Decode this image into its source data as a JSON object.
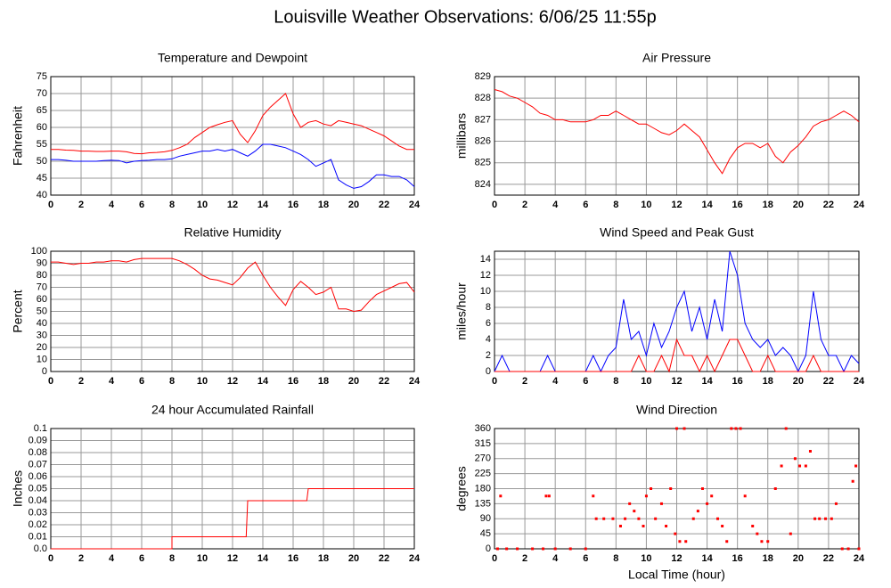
{
  "title": "Louisville Weather Observations: 6/06/25 11:55p",
  "chart_data": [
    {
      "type": "line",
      "title": "Temperature and Dewpoint",
      "ylabel": "Fahrenheit",
      "xlim": [
        0,
        24
      ],
      "xticks": [
        0,
        2,
        4,
        6,
        8,
        10,
        12,
        14,
        16,
        18,
        20,
        22,
        24
      ],
      "ylim": [
        40,
        75
      ],
      "yticks": [
        40,
        45,
        50,
        55,
        60,
        65,
        70,
        75
      ],
      "grid": true,
      "x": [
        0,
        0.5,
        1,
        1.5,
        2,
        2.5,
        3,
        3.5,
        4,
        4.5,
        5,
        5.5,
        6,
        6.5,
        7,
        7.5,
        8,
        8.5,
        9,
        9.5,
        10,
        10.5,
        11,
        11.5,
        12,
        12.5,
        13,
        13.5,
        14,
        14.5,
        15,
        15.5,
        16,
        16.5,
        17,
        17.5,
        18,
        18.5,
        19,
        19.5,
        20,
        20.5,
        21,
        21.5,
        22,
        22.5,
        23,
        23.5,
        24
      ],
      "series": [
        {
          "color": "#ff0000",
          "values": [
            53.5,
            53.5,
            53.3,
            53.2,
            53,
            53,
            52.9,
            52.9,
            53,
            53,
            52.8,
            52.3,
            52.2,
            52.5,
            52.6,
            52.8,
            53.2,
            54,
            55,
            57,
            58.5,
            60,
            60.8,
            61.5,
            62,
            58,
            55.5,
            59,
            63.5,
            66,
            68,
            70,
            64,
            60,
            61.5,
            62,
            61,
            60.5,
            62,
            61.5,
            61,
            60.5,
            59.5,
            58.5,
            57.5,
            56,
            54.5,
            53.5,
            53.5
          ]
        },
        {
          "color": "#0000ff",
          "values": [
            50.5,
            50.5,
            50.3,
            50,
            50,
            50,
            50,
            50.2,
            50.3,
            50.2,
            49.5,
            50,
            50.2,
            50.3,
            50.5,
            50.5,
            50.7,
            51.5,
            52,
            52.5,
            53,
            53,
            53.5,
            53,
            53.5,
            52.5,
            51.5,
            53,
            55,
            55,
            54.5,
            54,
            53,
            52,
            50.5,
            48.5,
            49.5,
            50.5,
            44.5,
            43,
            42,
            42.5,
            44,
            46,
            46,
            45.5,
            45.5,
            44.5,
            42.5
          ]
        }
      ]
    },
    {
      "type": "line",
      "title": "Air Pressure",
      "ylabel": "millibars",
      "xlim": [
        0,
        24
      ],
      "xticks": [
        0,
        2,
        4,
        6,
        8,
        10,
        12,
        14,
        16,
        18,
        20,
        22,
        24
      ],
      "ylim": [
        823.5,
        829
      ],
      "yticks": [
        824,
        825,
        826,
        827,
        828,
        829
      ],
      "grid": true,
      "x": [
        0,
        0.5,
        1,
        1.5,
        2,
        2.5,
        3,
        3.5,
        4,
        4.5,
        5,
        5.5,
        6,
        6.5,
        7,
        7.5,
        8,
        8.5,
        9,
        9.5,
        10,
        10.5,
        11,
        11.5,
        12,
        12.5,
        13,
        13.5,
        14,
        14.5,
        15,
        15.5,
        16,
        16.5,
        17,
        17.5,
        18,
        18.5,
        19,
        19.5,
        20,
        20.5,
        21,
        21.5,
        22,
        22.5,
        23,
        23.5,
        24
      ],
      "series": [
        {
          "color": "#ff0000",
          "values": [
            828.4,
            828.3,
            828.1,
            828,
            827.8,
            827.6,
            827.3,
            827.2,
            827,
            827,
            826.9,
            826.9,
            826.9,
            827,
            827.2,
            827.2,
            827.4,
            827.2,
            827,
            826.8,
            826.8,
            826.6,
            826.4,
            826.3,
            826.5,
            826.8,
            826.5,
            826.2,
            825.6,
            825,
            824.5,
            825.2,
            825.7,
            825.9,
            825.9,
            825.7,
            825.9,
            825.3,
            825,
            825.5,
            825.8,
            826.2,
            826.7,
            826.9,
            827,
            827.2,
            827.4,
            827.2,
            826.9
          ]
        }
      ]
    },
    {
      "type": "line",
      "title": "Relative Humidity",
      "ylabel": "Percent",
      "xlim": [
        0,
        24
      ],
      "xticks": [
        0,
        2,
        4,
        6,
        8,
        10,
        12,
        14,
        16,
        18,
        20,
        22,
        24
      ],
      "ylim": [
        0,
        100
      ],
      "yticks": [
        0,
        10,
        20,
        30,
        40,
        50,
        60,
        70,
        80,
        90,
        100
      ],
      "grid": true,
      "x": [
        0,
        0.5,
        1,
        1.5,
        2,
        2.5,
        3,
        3.5,
        4,
        4.5,
        5,
        5.5,
        6,
        6.5,
        7,
        7.5,
        8,
        8.5,
        9,
        9.5,
        10,
        10.5,
        11,
        11.5,
        12,
        12.5,
        13,
        13.5,
        14,
        14.5,
        15,
        15.5,
        16,
        16.5,
        17,
        17.5,
        18,
        18.5,
        19,
        19.5,
        20,
        20.5,
        21,
        21.5,
        22,
        22.5,
        23,
        23.5,
        24
      ],
      "series": [
        {
          "color": "#ff0000",
          "values": [
            91,
            91,
            90,
            89,
            90,
            90,
            91,
            91,
            92,
            92,
            91,
            93,
            94,
            94,
            94,
            94,
            94,
            92,
            89,
            85,
            80,
            77,
            76,
            74,
            72,
            78,
            86,
            91,
            80,
            70,
            62,
            55,
            68,
            75,
            70,
            64,
            66,
            70,
            52,
            52,
            50,
            51,
            58,
            64,
            67,
            70,
            73,
            74,
            66
          ]
        }
      ]
    },
    {
      "type": "line",
      "title": "Wind Speed and Peak Gust",
      "ylabel": "miles/hour",
      "xlim": [
        0,
        24
      ],
      "xticks": [
        0,
        2,
        4,
        6,
        8,
        10,
        12,
        14,
        16,
        18,
        20,
        22,
        24
      ],
      "ylim": [
        0,
        15
      ],
      "yticks": [
        0,
        2,
        4,
        6,
        8,
        10,
        12,
        14
      ],
      "grid": true,
      "x": [
        0,
        0.5,
        1,
        1.5,
        2,
        2.5,
        3,
        3.5,
        4,
        4.5,
        5,
        5.5,
        6,
        6.5,
        7,
        7.5,
        8,
        8.5,
        9,
        9.5,
        10,
        10.5,
        11,
        11.5,
        12,
        12.5,
        13,
        13.5,
        14,
        14.5,
        15,
        15.5,
        16,
        16.5,
        17,
        17.5,
        18,
        18.5,
        19,
        19.5,
        20,
        20.5,
        21,
        21.5,
        22,
        22.5,
        23,
        23.5,
        24
      ],
      "series": [
        {
          "color": "#0000ff",
          "values": [
            0,
            2,
            0,
            0,
            0,
            0,
            0,
            2,
            0,
            0,
            0,
            0,
            0,
            2,
            0,
            2,
            3,
            9,
            4,
            5,
            2,
            6,
            3,
            5,
            8,
            10,
            5,
            8,
            4,
            9,
            5,
            15,
            12,
            6,
            4,
            3,
            4,
            2,
            3,
            2,
            0,
            2,
            10,
            4,
            2,
            2,
            0,
            2,
            1
          ]
        },
        {
          "color": "#ff0000",
          "values": [
            0,
            0,
            0,
            0,
            0,
            0,
            0,
            0,
            0,
            0,
            0,
            0,
            0,
            0,
            0,
            0,
            0,
            0,
            0,
            2,
            0,
            0,
            2,
            0,
            4,
            2,
            2,
            0,
            2,
            0,
            2,
            4,
            4,
            2,
            0,
            0,
            2,
            0,
            0,
            0,
            0,
            0,
            2,
            0,
            0,
            0,
            0,
            0,
            0
          ]
        }
      ]
    },
    {
      "type": "line",
      "title": "24 hour Accumulated Rainfall",
      "ylabel": "Inches",
      "xlim": [
        0,
        24
      ],
      "xticks": [
        0,
        2,
        4,
        6,
        8,
        10,
        12,
        14,
        16,
        18,
        20,
        22,
        24
      ],
      "ylim": [
        0,
        0.1
      ],
      "yticks": [
        {
          "value": 0,
          "label": "0.0"
        },
        0.01,
        0.02,
        0.03,
        0.04,
        0.05,
        0.06,
        0.07,
        0.08,
        0.09,
        0.1
      ],
      "grid": true,
      "x": [
        0,
        8,
        8,
        12.9,
        13,
        16.9,
        17,
        24
      ],
      "series": [
        {
          "color": "#ff0000",
          "values": [
            0,
            0,
            0.01,
            0.01,
            0.04,
            0.04,
            0.05,
            0.05
          ]
        }
      ]
    },
    {
      "type": "scatter",
      "title": "Wind Direction",
      "ylabel": "degrees",
      "xlabel": "Local Time (hour)",
      "xlim": [
        0,
        24
      ],
      "xticks": [
        0,
        2,
        4,
        6,
        8,
        10,
        12,
        14,
        16,
        18,
        20,
        22,
        24
      ],
      "ylim": [
        0,
        360
      ],
      "yticks": [
        0,
        45,
        90,
        135,
        180,
        225,
        270,
        315,
        360
      ],
      "grid": true,
      "x": [
        0.2,
        0.4,
        0.8,
        1.5,
        2.5,
        3.2,
        3.4,
        3.6,
        4,
        5,
        6,
        6.5,
        6.7,
        7.2,
        7.8,
        8.3,
        8.6,
        8.9,
        9.2,
        9.5,
        9.8,
        10,
        10.3,
        10.6,
        11,
        11.3,
        11.6,
        11.9,
        12,
        12.2,
        12.5,
        12.6,
        13.1,
        13.4,
        13.7,
        14,
        14.3,
        14.7,
        15,
        15.3,
        15.6,
        15.9,
        16.2,
        16.5,
        17,
        17.3,
        17.6,
        18,
        18.5,
        18.9,
        19.2,
        19.5,
        19.8,
        20.1,
        20.5,
        20.8,
        21.1,
        21.4,
        21.8,
        22.2,
        22.5,
        22.9,
        23.3,
        23.6,
        23.8,
        24
      ],
      "series": [
        {
          "color": "#ff0000",
          "values": [
            0,
            158,
            0,
            0,
            0,
            0,
            158,
            158,
            0,
            0,
            0,
            158,
            90,
            90,
            90,
            68,
            90,
            135,
            113,
            90,
            68,
            158,
            180,
            90,
            135,
            68,
            180,
            45,
            360,
            22,
            360,
            22,
            90,
            113,
            180,
            135,
            158,
            90,
            68,
            22,
            360,
            360,
            360,
            158,
            68,
            45,
            22,
            22,
            180,
            248,
            360,
            45,
            270,
            248,
            248,
            292,
            90,
            90,
            90,
            90,
            135,
            0,
            0,
            202,
            248,
            0
          ]
        }
      ]
    }
  ]
}
